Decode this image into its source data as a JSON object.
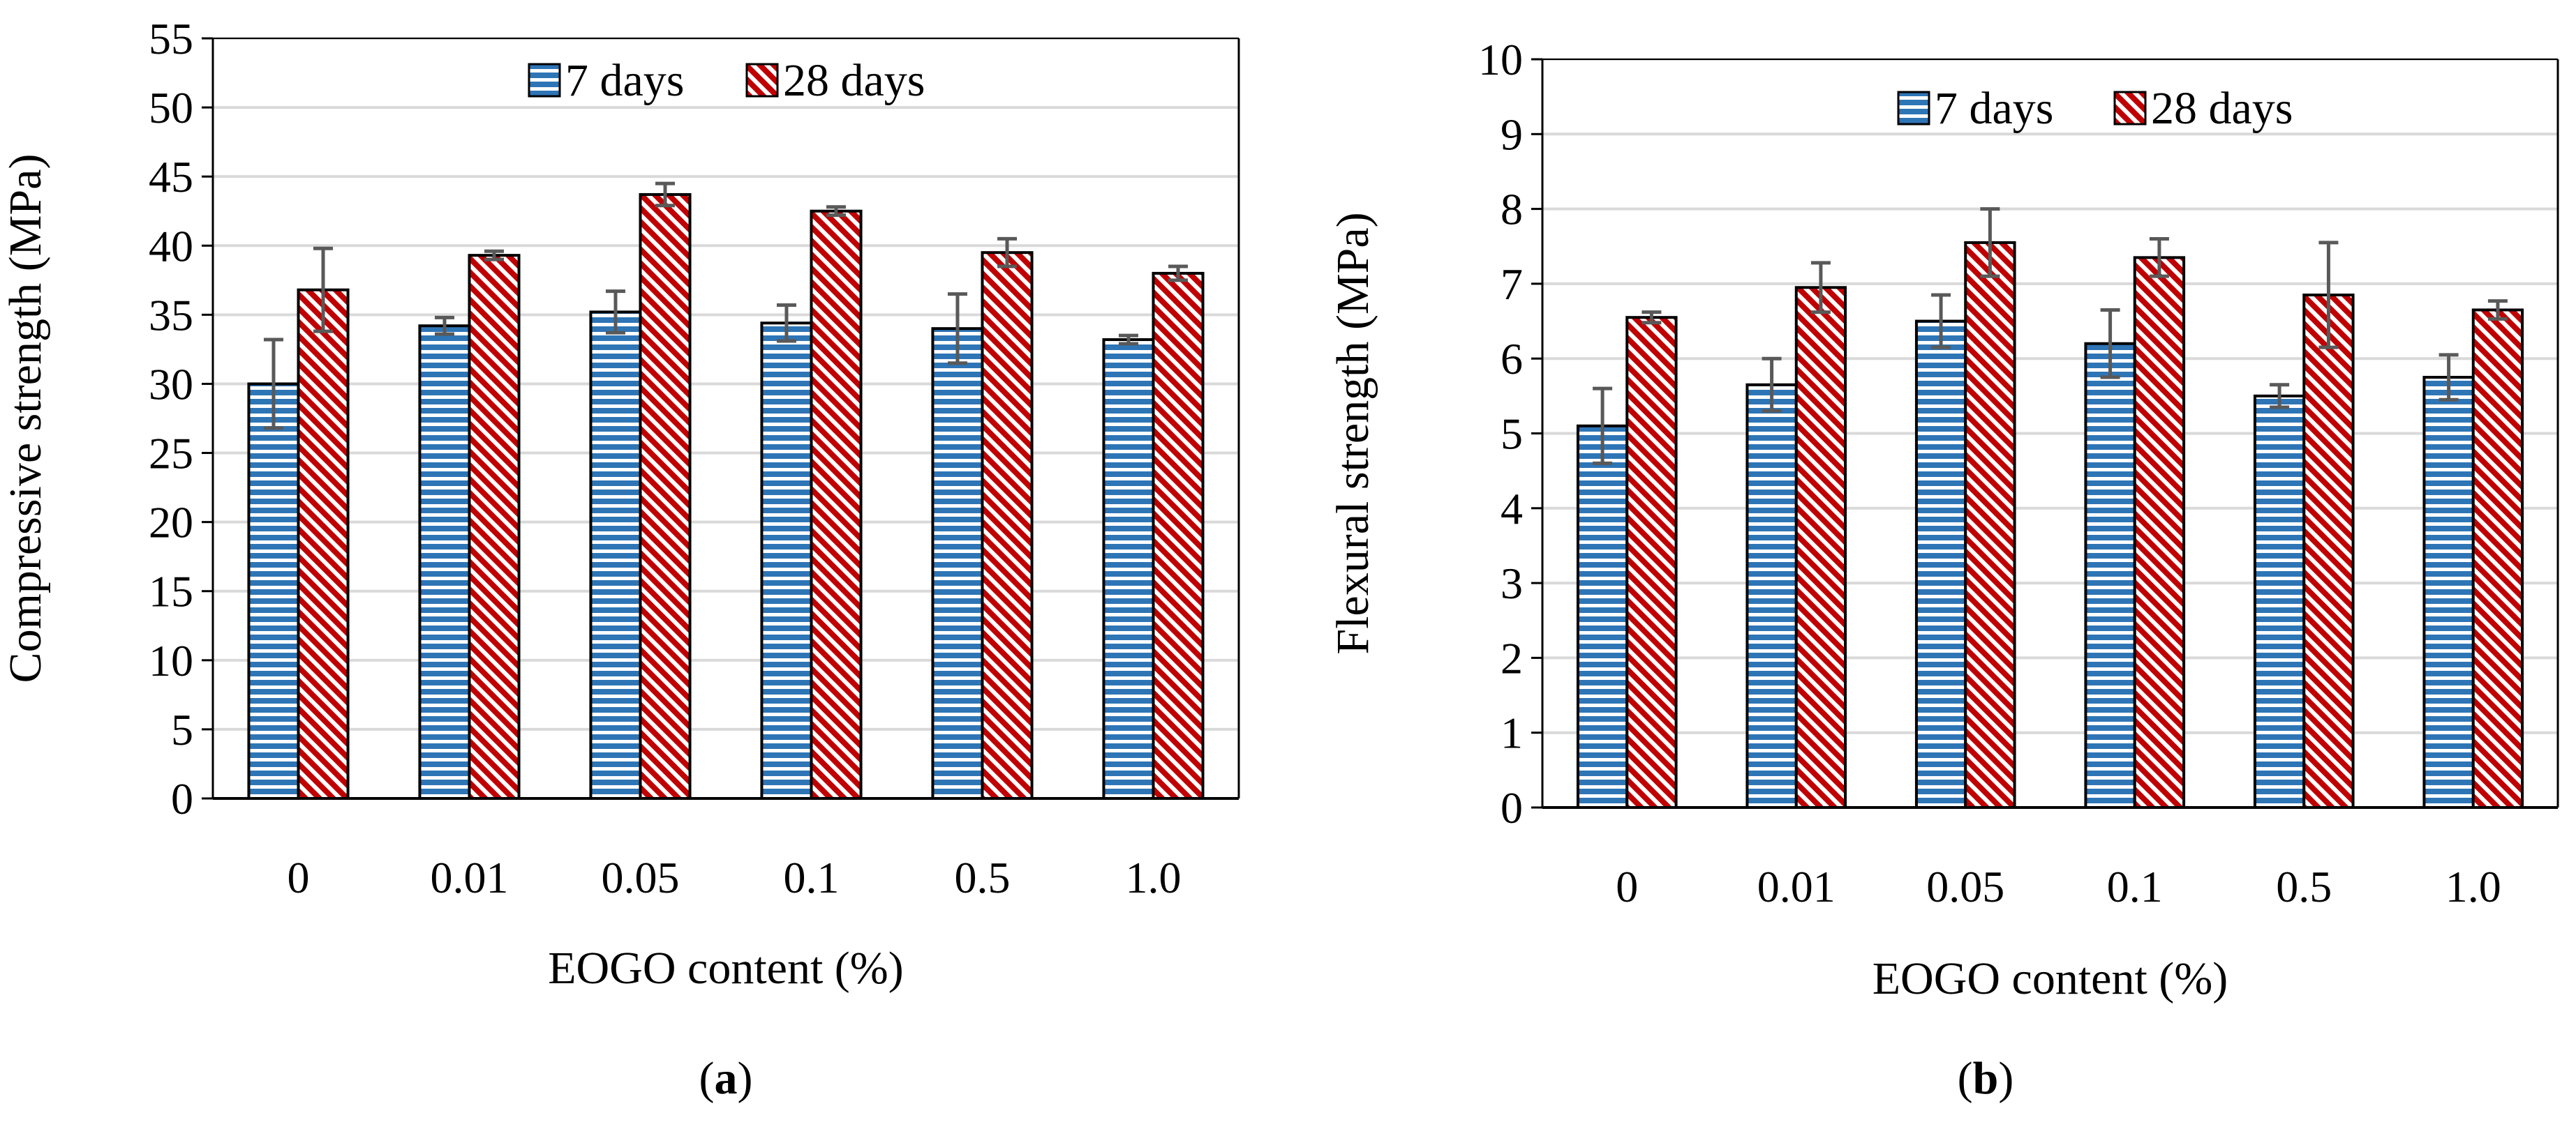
{
  "colors": {
    "series_7": "#2e75b6",
    "series_28": "#c00000",
    "gridline": "#d9d9d9",
    "errorbar": "#595959",
    "axis": "#000000"
  },
  "chart_data": [
    {
      "type": "bar",
      "panel_label": "a",
      "categories": [
        "0",
        "0.01",
        "0.05",
        "0.1",
        "0.5",
        "1.0"
      ],
      "series": [
        {
          "name": "7 days",
          "pattern": "horizontal-stripes",
          "values": [
            30.0,
            34.2,
            35.2,
            34.4,
            34.0,
            33.2
          ],
          "errors": [
            3.2,
            0.6,
            1.5,
            1.3,
            2.5,
            0.3
          ]
        },
        {
          "name": "28 days",
          "pattern": "diagonal-stripes",
          "values": [
            36.8,
            39.3,
            43.7,
            42.5,
            39.5,
            38.0
          ],
          "errors": [
            3.0,
            0.3,
            0.8,
            0.3,
            1.0,
            0.5
          ]
        }
      ],
      "title": "",
      "xlabel": "EOGO content (%)",
      "ylabel": "Compressive strength (MPa)",
      "ylim": [
        0,
        55
      ],
      "yticks": [
        0,
        5,
        10,
        15,
        20,
        25,
        30,
        35,
        40,
        45,
        50,
        55
      ],
      "grid": true,
      "legend": "top-center"
    },
    {
      "type": "bar",
      "panel_label": "b",
      "categories": [
        "0",
        "0.01",
        "0.05",
        "0.1",
        "0.5",
        "1.0"
      ],
      "series": [
        {
          "name": "7 days",
          "pattern": "horizontal-stripes",
          "values": [
            5.1,
            5.65,
            6.5,
            6.2,
            5.5,
            5.75
          ],
          "errors": [
            0.5,
            0.35,
            0.35,
            0.45,
            0.15,
            0.3
          ]
        },
        {
          "name": "28 days",
          "pattern": "diagonal-stripes",
          "values": [
            6.55,
            6.95,
            7.55,
            7.35,
            6.85,
            6.65
          ],
          "errors": [
            0.07,
            0.33,
            0.45,
            0.25,
            0.7,
            0.12
          ]
        }
      ],
      "title": "",
      "xlabel": "EOGO content (%)",
      "ylabel": "Flexural strength (MPa)",
      "ylim": [
        0,
        10
      ],
      "yticks": [
        0,
        1,
        2,
        3,
        4,
        5,
        6,
        7,
        8,
        9,
        10
      ],
      "grid": true,
      "legend": "top-center"
    }
  ]
}
